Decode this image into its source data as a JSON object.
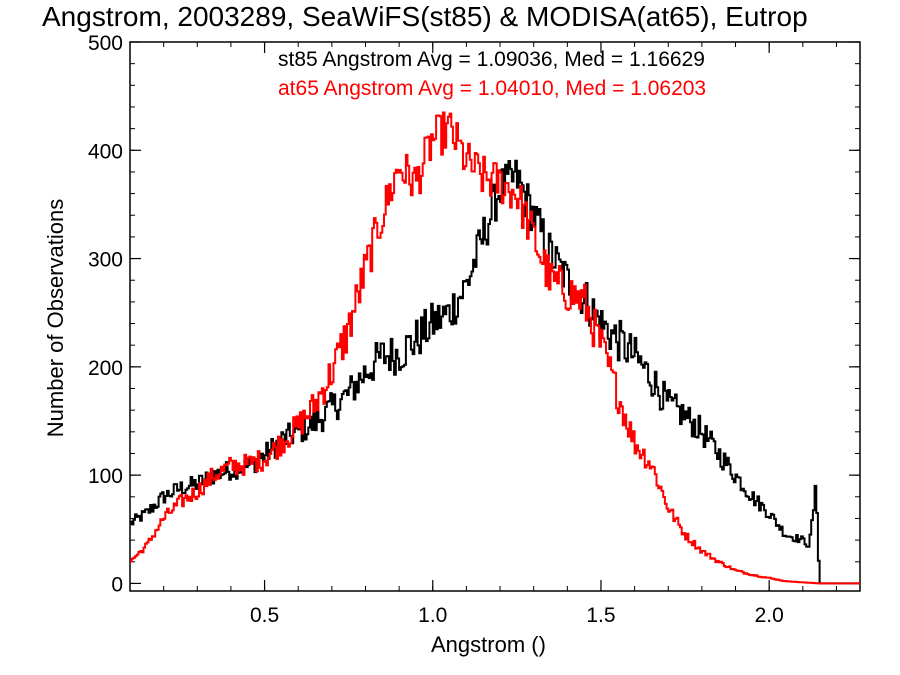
{
  "chart_data": {
    "type": "line",
    "title": "Angstrom, 2003289, SeaWiFS(st85) & MODISA(at65), Eutrop",
    "xlabel": "Angstrom ()",
    "ylabel": "Number of Observations",
    "xlim": [
      0.1,
      2.27
    ],
    "ylim": [
      -7,
      500
    ],
    "xticks": [
      0.5,
      1.0,
      1.5,
      2.0
    ],
    "xtick_labels": [
      "0.5",
      "1.0",
      "1.5",
      "2.0"
    ],
    "yticks": [
      0,
      100,
      200,
      300,
      400,
      500
    ],
    "ytick_labels": [
      "0",
      "100",
      "200",
      "300",
      "400",
      "500"
    ],
    "grid": false,
    "legend_placement": "top",
    "annotations": [
      "st85 Angstrom Avg = 1.09036, Med = 1.16629",
      "at65 Angstrom Avg = 1.04010, Med = 1.06203"
    ],
    "series": [
      {
        "key": "st85",
        "color": "#000000",
        "x": [
          0.1,
          0.15,
          0.2,
          0.25,
          0.3,
          0.35,
          0.4,
          0.45,
          0.5,
          0.55,
          0.6,
          0.65,
          0.7,
          0.75,
          0.8,
          0.85,
          0.9,
          0.95,
          1.0,
          1.05,
          1.1,
          1.15,
          1.2,
          1.25,
          1.3,
          1.35,
          1.4,
          1.45,
          1.5,
          1.55,
          1.6,
          1.65,
          1.7,
          1.75,
          1.8,
          1.85,
          1.9,
          1.95,
          2.0,
          2.05,
          2.1,
          2.12,
          2.14,
          2.15,
          2.16,
          2.2,
          2.27
        ],
        "y": [
          55,
          65,
          80,
          88,
          92,
          100,
          105,
          108,
          118,
          132,
          140,
          148,
          162,
          175,
          195,
          210,
          212,
          225,
          240,
          250,
          275,
          320,
          365,
          375,
          340,
          305,
          280,
          265,
          240,
          225,
          210,
          190,
          165,
          155,
          140,
          120,
          100,
          80,
          65,
          45,
          40,
          35,
          90,
          0,
          0,
          0,
          0
        ]
      },
      {
        "key": "at65",
        "color": "#ff0000",
        "x": [
          0.1,
          0.15,
          0.2,
          0.25,
          0.3,
          0.35,
          0.4,
          0.45,
          0.5,
          0.55,
          0.6,
          0.65,
          0.7,
          0.75,
          0.8,
          0.85,
          0.9,
          0.95,
          1.0,
          1.05,
          1.1,
          1.15,
          1.2,
          1.25,
          1.3,
          1.35,
          1.4,
          1.45,
          1.5,
          1.55,
          1.6,
          1.65,
          1.7,
          1.75,
          1.8,
          1.85,
          1.9,
          1.95,
          2.0,
          2.05,
          2.1,
          2.15,
          2.2,
          2.27
        ],
        "y": [
          20,
          35,
          60,
          75,
          85,
          100,
          108,
          110,
          115,
          130,
          145,
          165,
          195,
          235,
          290,
          340,
          385,
          370,
          410,
          420,
          390,
          375,
          370,
          360,
          320,
          280,
          270,
          260,
          220,
          175,
          130,
          110,
          70,
          45,
          30,
          20,
          12,
          8,
          5,
          2,
          1,
          0,
          0,
          0
        ]
      }
    ]
  }
}
